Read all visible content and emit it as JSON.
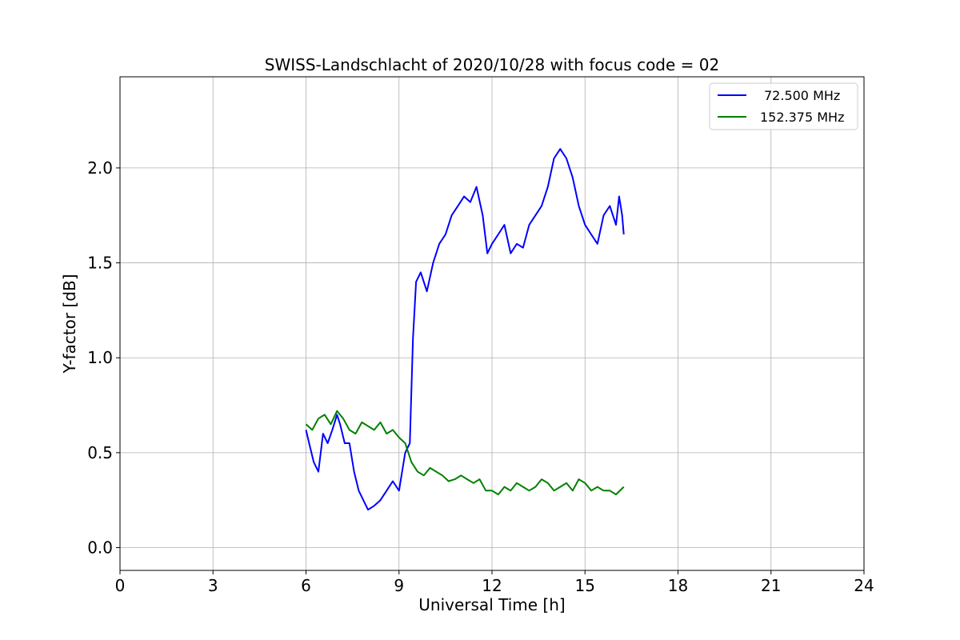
{
  "chart_data": {
    "type": "line",
    "title": "SWISS-Landschlacht of 2020/10/28 with focus code = 02",
    "xlabel": "Universal Time [h]",
    "ylabel": "Y-factor [dB]",
    "xlim": [
      0,
      24
    ],
    "ylim": [
      -0.12,
      2.48
    ],
    "xticks": [
      0,
      3,
      6,
      9,
      12,
      15,
      18,
      21,
      24
    ],
    "yticks": [
      0.0,
      0.5,
      1.0,
      1.5,
      2.0
    ],
    "xtick_labels": [
      "0",
      "3",
      "6",
      "9",
      "12",
      "15",
      "18",
      "21",
      "24"
    ],
    "ytick_labels": [
      "0.0",
      "0.5",
      "1.0",
      "1.5",
      "2.0"
    ],
    "grid": true,
    "legend_position": "top-right",
    "series": [
      {
        "name": "72.500 MHz",
        "color": "#0000ff",
        "x": [
          6.0,
          6.1,
          6.25,
          6.4,
          6.55,
          6.7,
          6.85,
          7.0,
          7.1,
          7.25,
          7.4,
          7.55,
          7.7,
          7.85,
          8.0,
          8.2,
          8.4,
          8.6,
          8.8,
          9.0,
          9.2,
          9.35,
          9.45,
          9.55,
          9.7,
          9.9,
          10.1,
          10.3,
          10.5,
          10.7,
          10.9,
          11.1,
          11.3,
          11.5,
          11.7,
          11.85,
          12.0,
          12.2,
          12.4,
          12.6,
          12.8,
          13.0,
          13.2,
          13.4,
          13.6,
          13.8,
          14.0,
          14.2,
          14.4,
          14.6,
          14.8,
          15.0,
          15.2,
          15.4,
          15.6,
          15.8,
          16.0,
          16.1,
          16.2,
          16.25
        ],
        "y": [
          0.62,
          0.55,
          0.45,
          0.4,
          0.6,
          0.55,
          0.62,
          0.7,
          0.65,
          0.55,
          0.55,
          0.4,
          0.3,
          0.25,
          0.2,
          0.22,
          0.25,
          0.3,
          0.35,
          0.3,
          0.5,
          0.55,
          1.1,
          1.4,
          1.45,
          1.35,
          1.5,
          1.6,
          1.65,
          1.75,
          1.8,
          1.85,
          1.82,
          1.9,
          1.75,
          1.55,
          1.6,
          1.65,
          1.7,
          1.55,
          1.6,
          1.58,
          1.7,
          1.75,
          1.8,
          1.9,
          2.05,
          2.1,
          2.05,
          1.95,
          1.8,
          1.7,
          1.65,
          1.6,
          1.75,
          1.8,
          1.7,
          1.85,
          1.75,
          1.65
        ]
      },
      {
        "name": "152.375 MHz",
        "color": "#008000",
        "x": [
          6.0,
          6.2,
          6.4,
          6.6,
          6.8,
          7.0,
          7.2,
          7.4,
          7.6,
          7.8,
          8.0,
          8.2,
          8.4,
          8.6,
          8.8,
          9.0,
          9.2,
          9.4,
          9.6,
          9.8,
          10.0,
          10.2,
          10.4,
          10.6,
          10.8,
          11.0,
          11.2,
          11.4,
          11.6,
          11.8,
          12.0,
          12.2,
          12.4,
          12.6,
          12.8,
          13.0,
          13.2,
          13.4,
          13.6,
          13.8,
          14.0,
          14.2,
          14.4,
          14.6,
          14.8,
          15.0,
          15.2,
          15.4,
          15.6,
          15.8,
          16.0,
          16.25
        ],
        "y": [
          0.65,
          0.62,
          0.68,
          0.7,
          0.65,
          0.72,
          0.68,
          0.62,
          0.6,
          0.66,
          0.64,
          0.62,
          0.66,
          0.6,
          0.62,
          0.58,
          0.55,
          0.45,
          0.4,
          0.38,
          0.42,
          0.4,
          0.38,
          0.35,
          0.36,
          0.38,
          0.36,
          0.34,
          0.36,
          0.3,
          0.3,
          0.28,
          0.32,
          0.3,
          0.34,
          0.32,
          0.3,
          0.32,
          0.36,
          0.34,
          0.3,
          0.32,
          0.34,
          0.3,
          0.36,
          0.34,
          0.3,
          0.32,
          0.3,
          0.3,
          0.28,
          0.32
        ]
      }
    ]
  }
}
